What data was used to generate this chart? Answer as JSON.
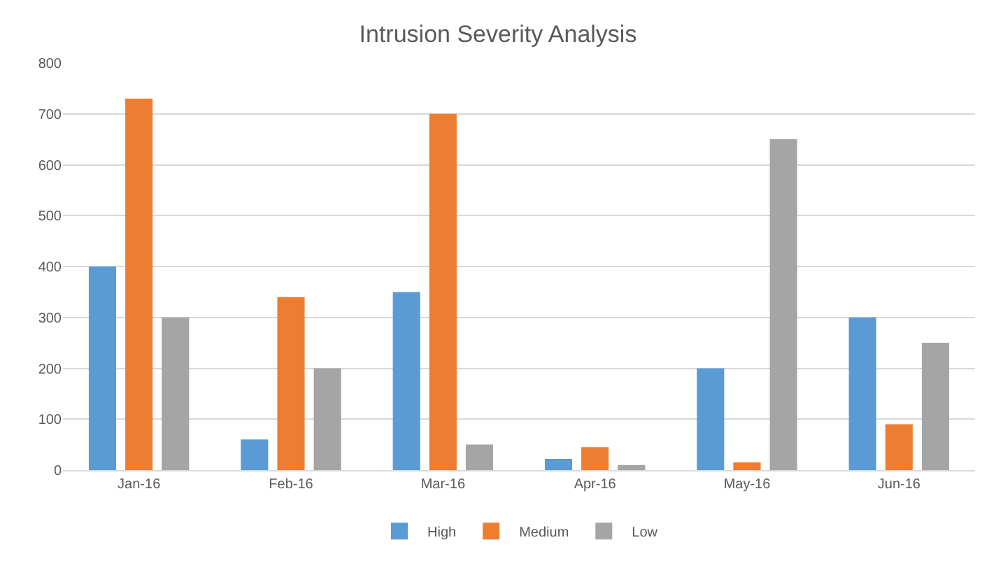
{
  "chart_data": {
    "type": "bar",
    "title": "Intrusion Severity Analysis",
    "categories": [
      "Jan-16",
      "Feb-16",
      "Mar-16",
      "Apr-16",
      "May-16",
      "Jun-16"
    ],
    "series": [
      {
        "name": "High",
        "color": "#5b9bd5",
        "values": [
          400,
          60,
          350,
          22,
          200,
          300
        ]
      },
      {
        "name": "Medium",
        "color": "#ed7d31",
        "values": [
          730,
          340,
          700,
          45,
          15,
          90
        ]
      },
      {
        "name": "Low",
        "color": "#a5a5a5",
        "values": [
          300,
          200,
          50,
          10,
          650,
          250
        ]
      }
    ],
    "ylim": [
      0,
      800
    ],
    "yticks": [
      0,
      100,
      200,
      300,
      400,
      500,
      600,
      700,
      800
    ],
    "grid": "y",
    "legend": "bottom"
  }
}
